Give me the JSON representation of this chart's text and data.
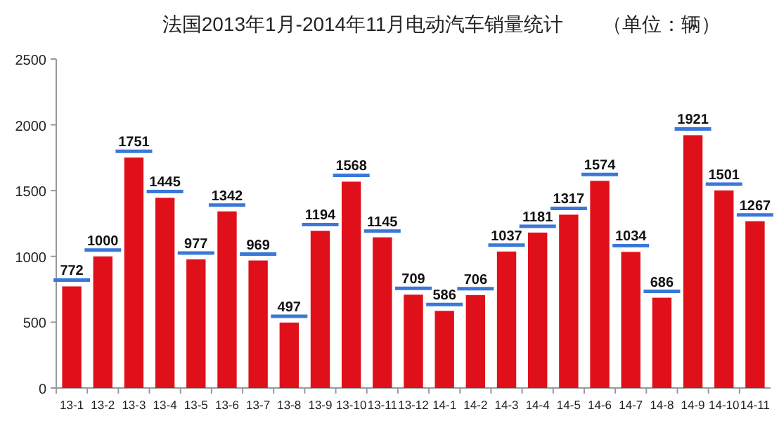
{
  "chart_data": {
    "type": "bar",
    "title": "法国2013年1月-2014年11月电动汽车销量统计　　（单位：辆）",
    "categories": [
      "13-1",
      "13-2",
      "13-3",
      "13-4",
      "13-5",
      "13-6",
      "13-7",
      "13-8",
      "13-9",
      "13-10",
      "13-11",
      "13-12",
      "14-1",
      "14-2",
      "14-3",
      "14-4",
      "14-5",
      "14-6",
      "14-7",
      "14-8",
      "14-9",
      "14-10",
      "14-11"
    ],
    "values": [
      772,
      1000,
      1751,
      1445,
      977,
      1342,
      969,
      497,
      1194,
      1568,
      1145,
      709,
      586,
      706,
      1037,
      1181,
      1317,
      1574,
      1034,
      686,
      1921,
      1501,
      1267
    ],
    "color": "#e0101a",
    "ylim": [
      0,
      2500
    ],
    "yticks": [
      0,
      500,
      1000,
      1500,
      2000,
      2500
    ],
    "grid": false,
    "data_labels": true
  }
}
